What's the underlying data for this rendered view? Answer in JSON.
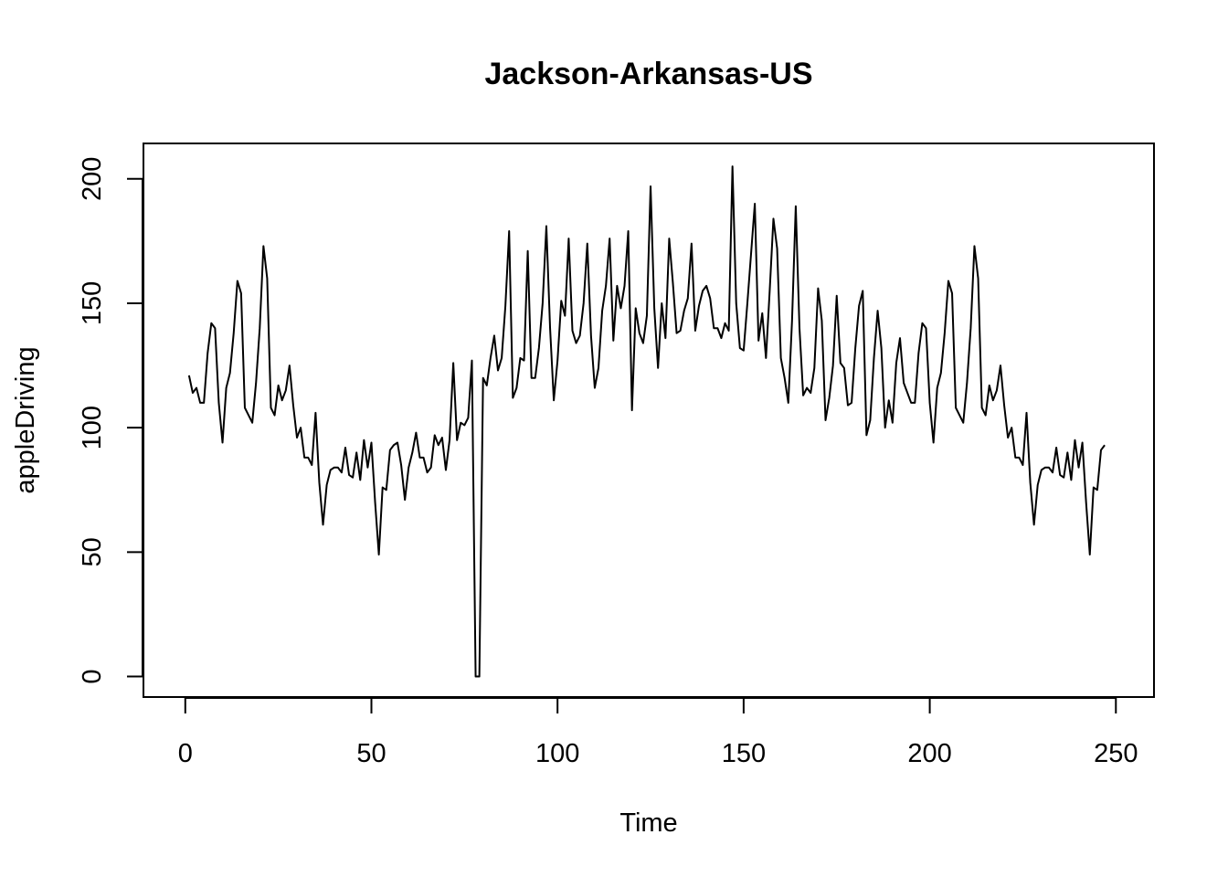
{
  "chart_data": {
    "type": "line",
    "title": "Jackson-Arkansas-US",
    "xlabel": "Time",
    "ylabel": "appleDriving",
    "xlim": [
      1,
      248
    ],
    "ylim": [
      0,
      206
    ],
    "xticks": [
      0,
      50,
      100,
      150,
      200,
      250
    ],
    "yticks": [
      0,
      50,
      100,
      150,
      200
    ],
    "grid": false,
    "legend": "none",
    "line_color": "#000000",
    "series": [
      {
        "x_start": 1,
        "values": [
          121,
          114,
          116,
          110,
          110,
          130,
          142,
          140,
          110,
          94,
          116,
          122,
          138,
          159,
          154,
          108,
          105,
          102,
          118,
          140,
          173,
          160,
          108,
          105,
          117,
          111,
          115,
          125,
          109,
          96,
          100,
          88,
          88,
          85,
          106,
          78,
          61,
          77,
          83,
          84,
          84,
          82,
          92,
          81,
          80,
          90,
          79,
          95,
          84,
          94,
          70,
          49,
          76,
          75,
          91,
          93,
          94,
          85,
          71,
          84,
          90,
          98,
          88,
          88,
          82,
          84,
          97,
          93,
          96,
          83,
          95,
          126,
          95,
          102,
          101,
          104,
          127,
          0,
          0,
          120,
          117,
          128,
          137,
          123,
          128,
          149,
          179,
          112,
          116,
          128,
          127,
          171,
          120,
          120,
          132,
          150,
          181,
          140,
          111,
          127,
          151,
          145,
          176,
          139,
          134,
          137,
          150,
          174,
          137,
          116,
          124,
          147,
          157,
          176,
          135,
          157,
          148,
          157,
          179,
          107,
          148,
          138,
          134,
          145,
          197,
          148,
          124,
          150,
          136,
          176,
          158,
          138,
          139,
          147,
          152,
          174,
          139,
          149,
          155,
          157,
          152,
          140,
          140,
          136,
          142,
          139,
          205,
          150,
          132,
          131,
          150,
          170,
          190,
          135,
          146,
          128,
          155,
          184,
          172,
          128,
          120,
          110,
          143,
          189,
          140,
          113,
          116,
          114,
          124,
          156,
          143,
          103,
          112,
          125,
          153,
          126,
          124,
          109,
          110,
          132,
          149,
          155,
          97,
          103,
          128,
          147,
          132,
          100,
          111,
          102,
          126,
          136,
          118,
          114,
          110,
          110,
          130,
          142,
          140,
          110,
          94,
          116,
          122,
          138,
          159,
          154,
          108,
          105,
          102,
          118,
          140,
          173,
          160,
          108,
          105,
          117,
          111,
          115,
          125,
          109,
          96,
          100,
          88,
          88,
          85,
          106,
          78,
          61,
          77,
          83,
          84,
          84,
          82,
          92,
          81,
          80,
          90,
          79,
          95,
          84,
          94,
          70,
          49,
          76,
          75,
          91,
          93
        ]
      }
    ]
  }
}
